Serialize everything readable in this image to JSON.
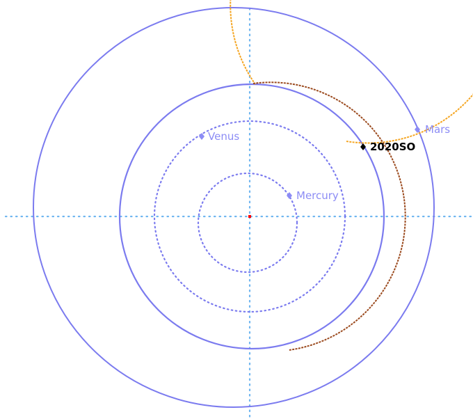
{
  "colors": {
    "background": "#ffffff",
    "orbit": "#7b7bef",
    "axis": "#6fb6f0",
    "orbit_2020so_inner": "#f5a623",
    "orbit_2020so_outer": "#9b4a1e",
    "sun": "#ff0000",
    "label_planet": "#8c8cf5",
    "label_object": "#000000"
  },
  "bodies": [
    {
      "id": "mercury",
      "label": "Mercury"
    },
    {
      "id": "venus",
      "label": "Venus"
    },
    {
      "id": "mars",
      "label": "Mars"
    },
    {
      "id": "2020so",
      "label": "2020SO"
    }
  ]
}
